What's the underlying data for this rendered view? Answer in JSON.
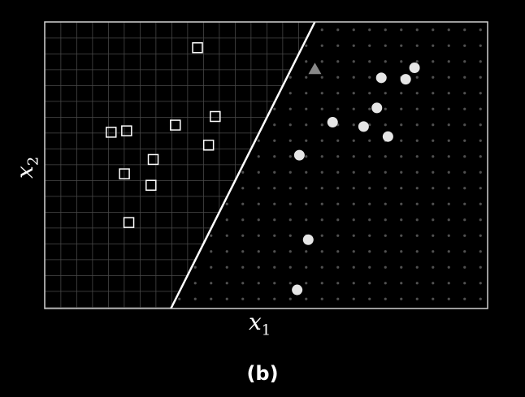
{
  "caption": "(b)",
  "chart_data": {
    "type": "scatter",
    "title": "",
    "xlabel": {
      "base": "x",
      "sub": "1"
    },
    "ylabel": {
      "base": "x",
      "sub": "2"
    },
    "xlim": [
      0,
      10
    ],
    "ylim": [
      0,
      10
    ],
    "grid": false,
    "decision_boundary": {
      "x": [
        2.85,
        6.1
      ],
      "y": [
        0,
        10
      ]
    },
    "regions": [
      {
        "side": "left",
        "fill_pattern": "grid",
        "color": "#555555"
      },
      {
        "side": "right",
        "fill_pattern": "dots",
        "color": "#555555"
      }
    ],
    "series": [
      {
        "marker": "square",
        "color": "#ffffff",
        "points": [
          [
            3.45,
            9.1
          ],
          [
            1.5,
            6.15
          ],
          [
            1.85,
            6.2
          ],
          [
            2.95,
            6.4
          ],
          [
            3.7,
            5.7
          ],
          [
            3.85,
            6.7
          ],
          [
            2.45,
            5.2
          ],
          [
            1.8,
            4.7
          ],
          [
            2.4,
            4.3
          ],
          [
            1.9,
            3.0
          ]
        ]
      },
      {
        "marker": "circle",
        "color": "#e6e6e6",
        "points": [
          [
            8.35,
            8.4
          ],
          [
            8.15,
            8.0
          ],
          [
            7.6,
            8.05
          ],
          [
            7.5,
            7.0
          ],
          [
            6.5,
            6.5
          ],
          [
            7.2,
            6.35
          ],
          [
            7.75,
            6.0
          ],
          [
            5.75,
            5.35
          ],
          [
            5.95,
            2.4
          ],
          [
            5.7,
            0.65
          ]
        ]
      },
      {
        "marker": "triangle",
        "color": "#888888",
        "points": [
          [
            6.1,
            8.35
          ]
        ]
      }
    ]
  }
}
